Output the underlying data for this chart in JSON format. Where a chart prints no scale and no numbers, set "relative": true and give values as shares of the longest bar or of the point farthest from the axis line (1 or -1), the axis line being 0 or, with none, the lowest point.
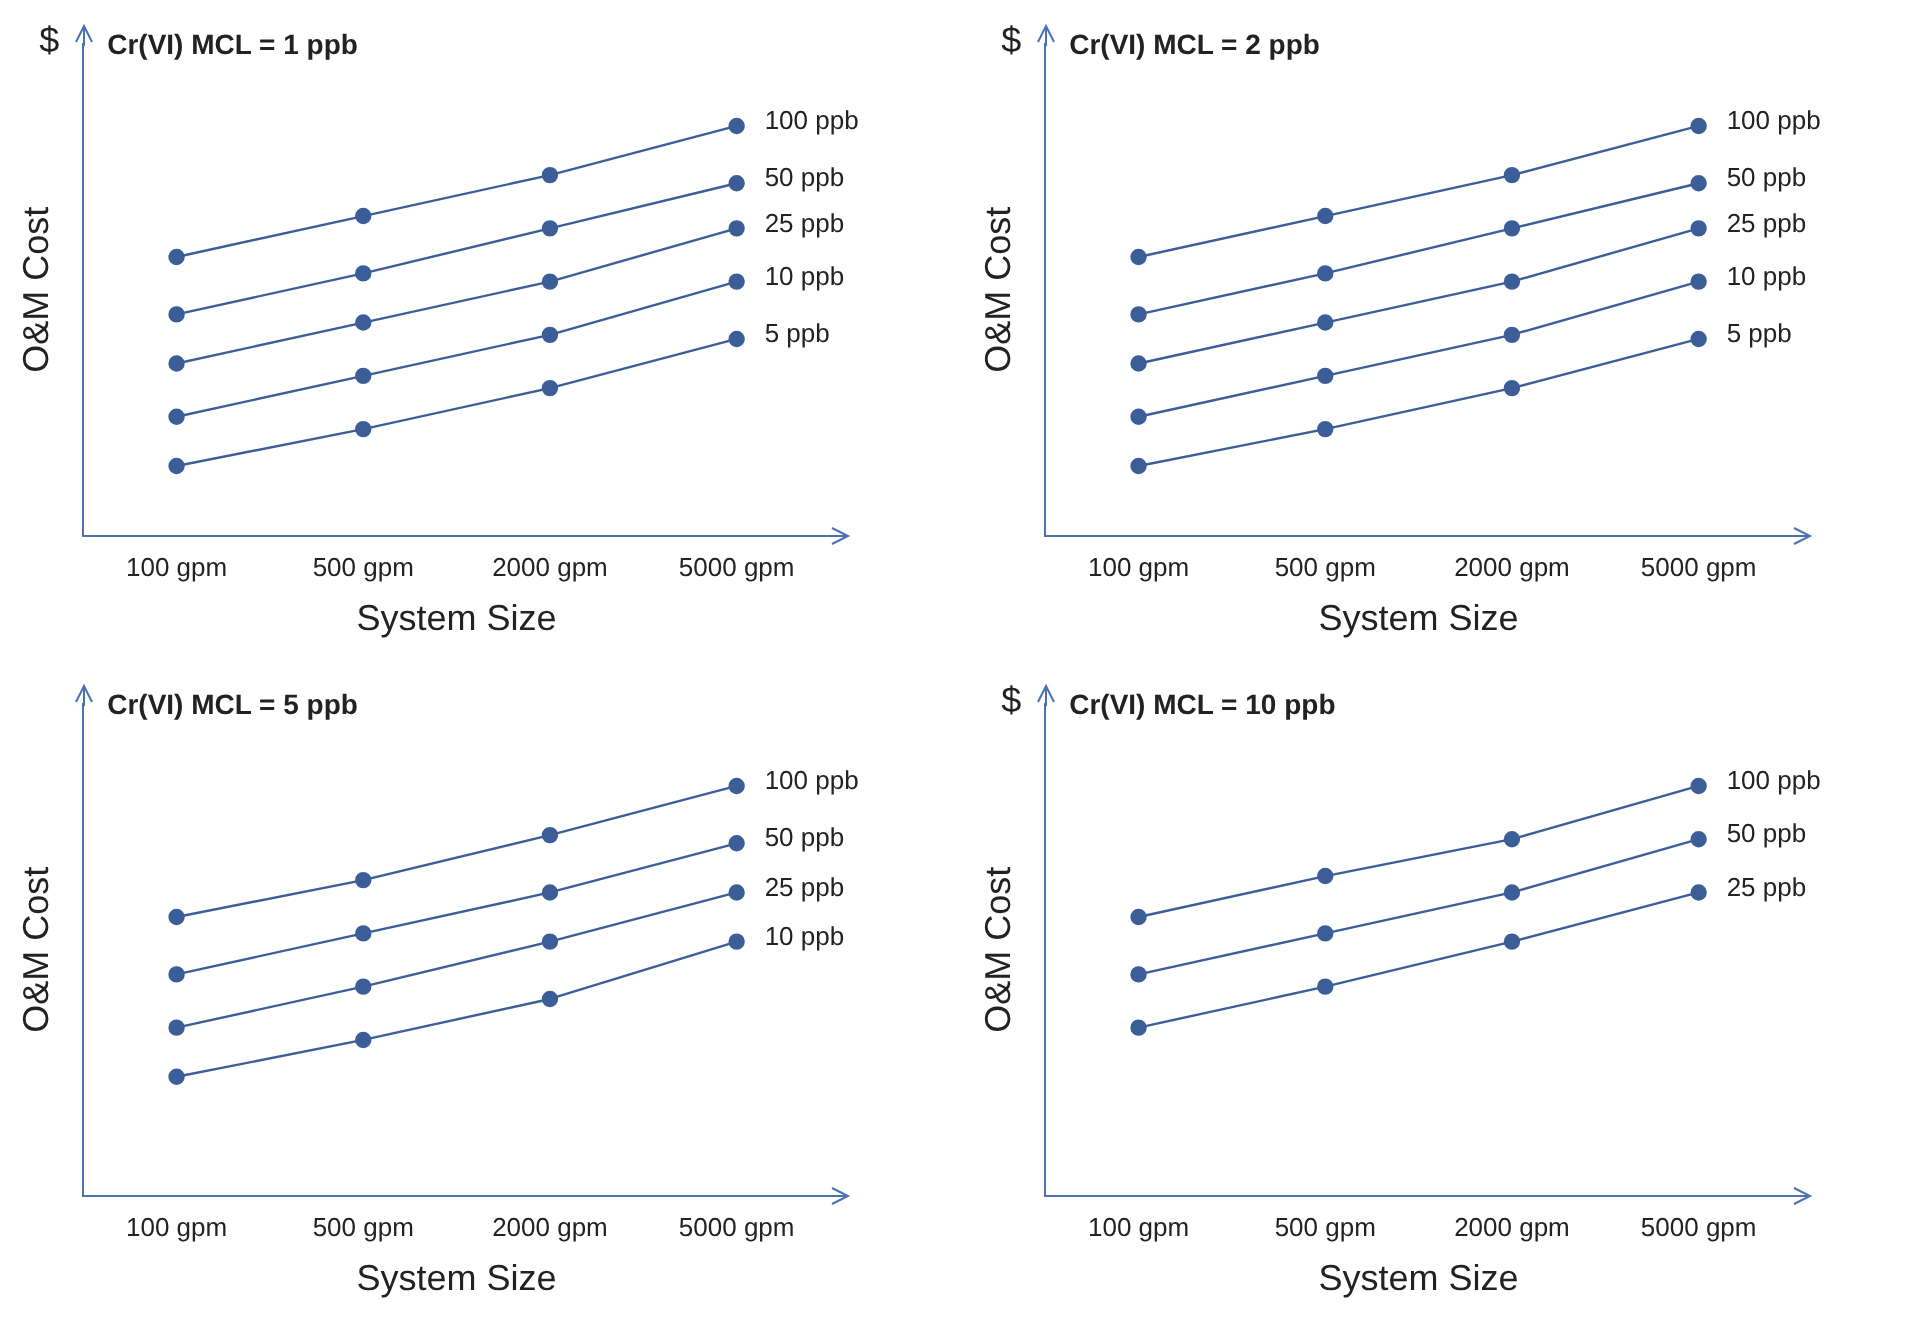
{
  "chart_data": [
    {
      "type": "line",
      "title": "Cr(VI) MCL = 1 ppb",
      "xlabel": "System Size",
      "ylabel": "O&M Cost",
      "annotations": [
        "$"
      ],
      "relative": true,
      "grid": false,
      "legend": false,
      "marker": "circle",
      "line_style": "solid",
      "categories": [
        "100 gpm",
        "500 gpm",
        "2000 gpm",
        "5000 gpm"
      ],
      "series": [
        {
          "name": "100 ppb",
          "color": "#3c5e98",
          "values": [
            0.68,
            0.78,
            0.88,
            1
          ]
        },
        {
          "name": "50 ppb",
          "color": "#3c5e98",
          "values": [
            0.54,
            0.64,
            0.75,
            0.86
          ]
        },
        {
          "name": "25 ppb",
          "color": "#3c5e98",
          "values": [
            0.42,
            0.52,
            0.62,
            0.75
          ]
        },
        {
          "name": "10 ppb",
          "color": "#3c5e98",
          "values": [
            0.29,
            0.39,
            0.49,
            0.62
          ]
        },
        {
          "name": "5 ppb",
          "color": "#3c5e98",
          "values": [
            0.17,
            0.26,
            0.36,
            0.48
          ]
        }
      ]
    },
    {
      "type": "line",
      "title": "Cr(VI) MCL = 2 ppb",
      "xlabel": "System Size",
      "ylabel": "O&M Cost",
      "annotations": [
        "$"
      ],
      "relative": true,
      "grid": false,
      "legend": false,
      "marker": "circle",
      "line_style": "solid",
      "categories": [
        "100 gpm",
        "500 gpm",
        "2000 gpm",
        "5000 gpm"
      ],
      "series": [
        {
          "name": "100 ppb",
          "color": "#3c5e98",
          "values": [
            0.68,
            0.78,
            0.88,
            1
          ]
        },
        {
          "name": "50 ppb",
          "color": "#3c5e98",
          "values": [
            0.54,
            0.64,
            0.75,
            0.86
          ]
        },
        {
          "name": "25 ppb",
          "color": "#3c5e98",
          "values": [
            0.42,
            0.52,
            0.62,
            0.75
          ]
        },
        {
          "name": "10 ppb",
          "color": "#3c5e98",
          "values": [
            0.29,
            0.39,
            0.49,
            0.62
          ]
        },
        {
          "name": "5 ppb",
          "color": "#3c5e98",
          "values": [
            0.17,
            0.26,
            0.36,
            0.48
          ]
        }
      ]
    },
    {
      "type": "line",
      "title": "Cr(VI) MCL = 5 ppb",
      "xlabel": "System Size",
      "ylabel": "O&M Cost",
      "relative": true,
      "grid": false,
      "legend": false,
      "marker": "circle",
      "line_style": "solid",
      "categories": [
        "100 gpm",
        "500 gpm",
        "2000 gpm",
        "5000 gpm"
      ],
      "series": [
        {
          "name": "100 ppb",
          "color": "#3c5e98",
          "values": [
            0.68,
            0.77,
            0.88,
            1
          ]
        },
        {
          "name": "50 ppb",
          "color": "#3c5e98",
          "values": [
            0.54,
            0.64,
            0.74,
            0.86
          ]
        },
        {
          "name": "25 ppb",
          "color": "#3c5e98",
          "values": [
            0.41,
            0.51,
            0.62,
            0.74
          ]
        },
        {
          "name": "10 ppb",
          "color": "#3c5e98",
          "values": [
            0.29,
            0.38,
            0.48,
            0.62
          ]
        }
      ]
    },
    {
      "type": "line",
      "title": "Cr(VI) MCL = 10 ppb",
      "xlabel": "System Size",
      "ylabel": "O&M Cost",
      "annotations": [
        "$"
      ],
      "relative": true,
      "grid": false,
      "legend": false,
      "marker": "circle",
      "line_style": "solid",
      "categories": [
        "100 gpm",
        "500 gpm",
        "2000 gpm",
        "5000 gpm"
      ],
      "series": [
        {
          "name": "100 ppb",
          "color": "#3c5e98",
          "values": [
            0.68,
            0.78,
            0.87,
            1
          ]
        },
        {
          "name": "50 ppb",
          "color": "#3c5e98",
          "values": [
            0.54,
            0.64,
            0.74,
            0.87
          ]
        },
        {
          "name": "25 ppb",
          "color": "#3c5e98",
          "values": [
            0.41,
            0.51,
            0.62,
            0.74
          ]
        }
      ]
    }
  ]
}
